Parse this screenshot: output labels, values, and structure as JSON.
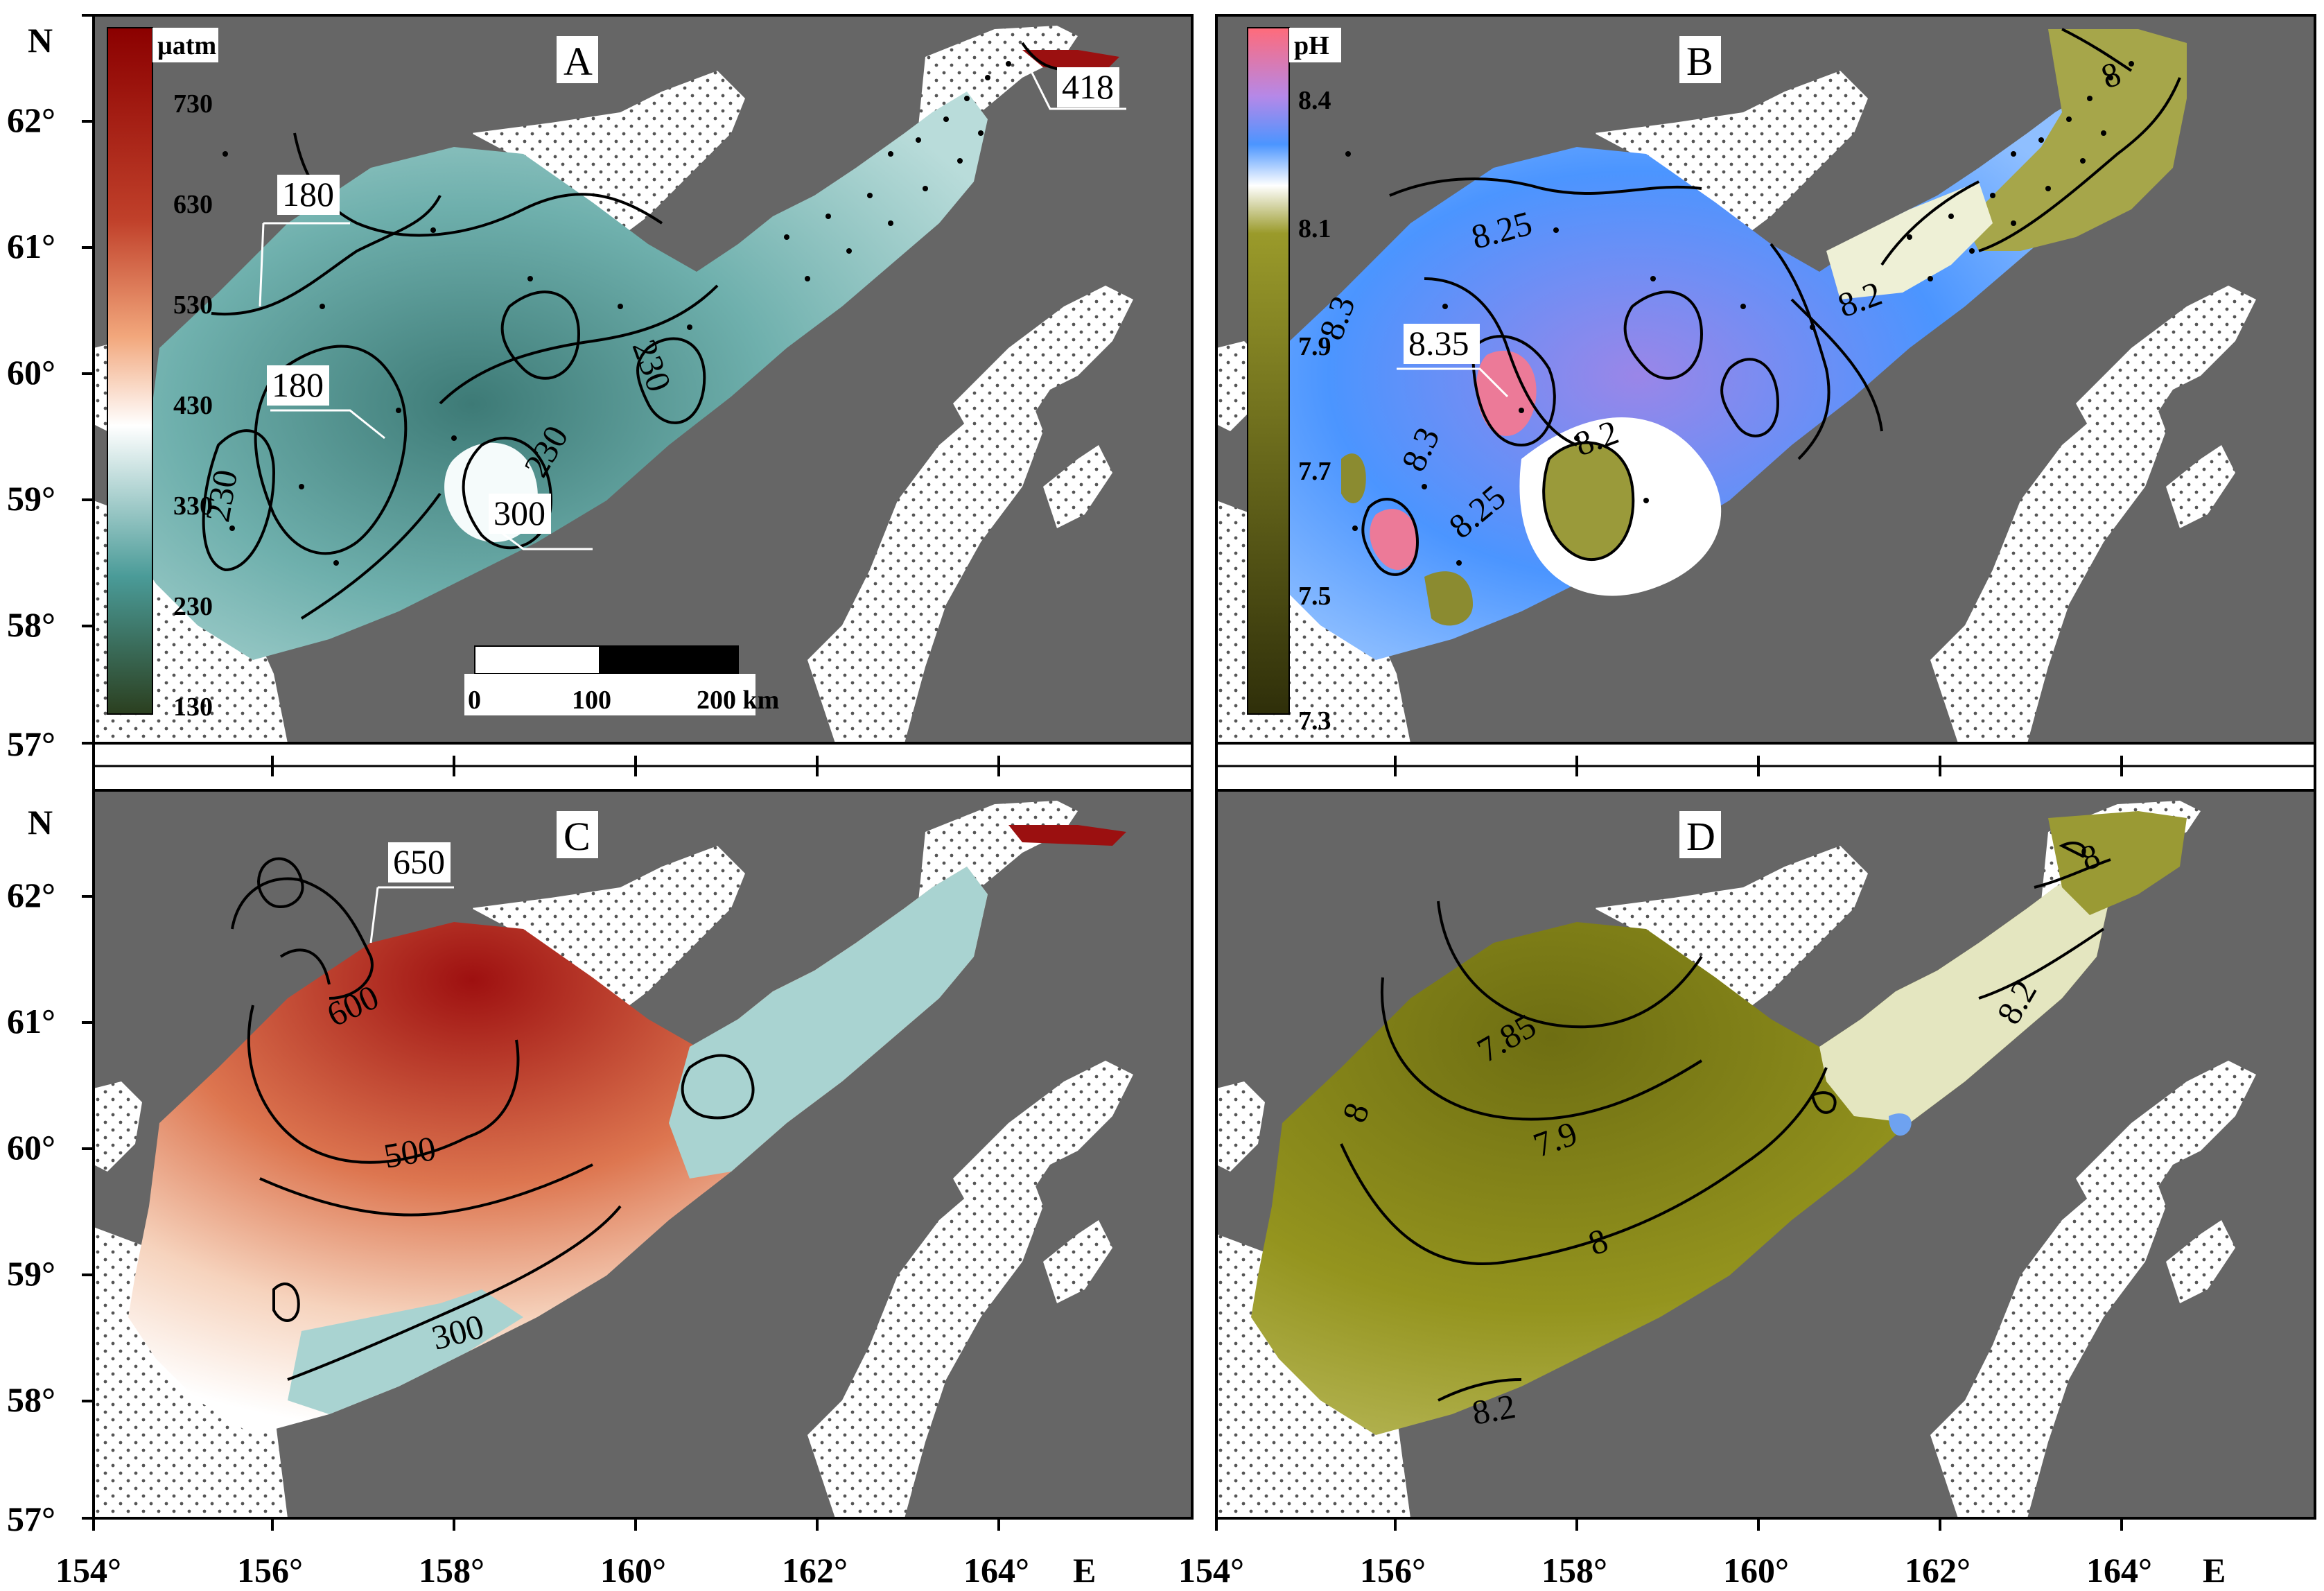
{
  "compass": {
    "north": "N",
    "east": "E"
  },
  "lat_labels": [
    "62°",
    "61°",
    "60°",
    "59°",
    "58°",
    "57°"
  ],
  "lon_labels": [
    "154°",
    "156°",
    "158°",
    "160°",
    "162°",
    "164°"
  ],
  "panels": {
    "A": {
      "letter": "A",
      "unit": "µatm",
      "colorbar_ticks": [
        "730",
        "630",
        "530",
        "430",
        "330",
        "230",
        "130"
      ],
      "contour_labels": [
        "180",
        "180",
        "230",
        "230",
        "300",
        "418",
        "230"
      ],
      "colors": {
        "low": "#2f4a2f",
        "mid": "#4a9b98",
        "white": "#ffffff",
        "orange": "#f2a77c",
        "high": "#8b0000"
      }
    },
    "B": {
      "letter": "B",
      "unit": "pH",
      "colorbar_ticks": [
        "8.4",
        "8.1",
        "7.9",
        "7.7",
        "7.5",
        "7.3"
      ],
      "contour_labels": [
        "8.25",
        "8.3",
        "8.35",
        "8.3",
        "8.25",
        "8.2",
        "8.2",
        "8"
      ],
      "colors": {
        "high": "#ff6b7a",
        "purple": "#9b8ae0",
        "blue": "#4b95ff",
        "olive": "#9a9a2a",
        "low": "#3a3a10"
      }
    },
    "C": {
      "letter": "C",
      "contour_labels": [
        "650",
        "600",
        "500",
        "300"
      ]
    },
    "D": {
      "letter": "D",
      "contour_labels": [
        "7.85",
        "7.9",
        "8",
        "8.2",
        "8.2",
        "8",
        "8"
      ]
    }
  },
  "scale_bar": {
    "t0": "0",
    "t1": "100",
    "t2": "200 km"
  }
}
